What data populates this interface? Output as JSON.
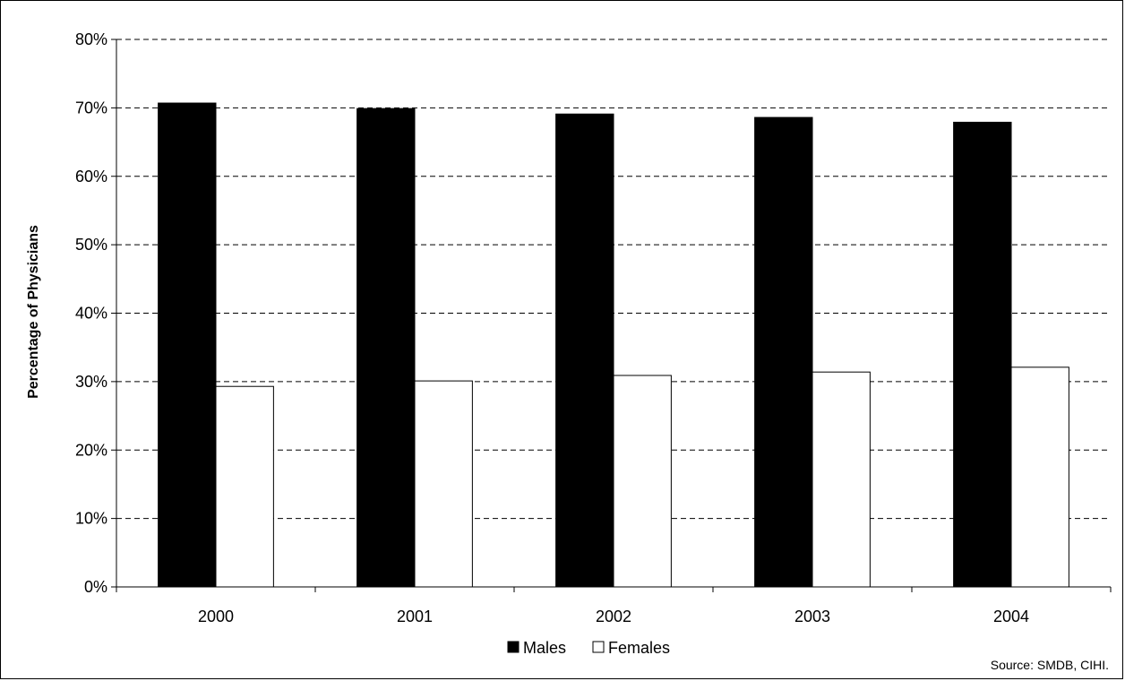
{
  "chart_data": {
    "type": "bar",
    "categories": [
      "2000",
      "2001",
      "2002",
      "2003",
      "2004"
    ],
    "series": [
      {
        "name": "Males",
        "values": [
          70.7,
          69.9,
          69.1,
          68.6,
          67.9
        ],
        "color": "#000000"
      },
      {
        "name": "Females",
        "values": [
          29.3,
          30.1,
          30.9,
          31.4,
          32.1
        ],
        "color": "#ffffff"
      }
    ],
    "title": "",
    "xlabel": "",
    "ylabel": "Percentage of Physicians",
    "ylim": [
      0,
      80
    ],
    "yticks": [
      "0%",
      "10%",
      "20%",
      "30%",
      "40%",
      "50%",
      "60%",
      "70%",
      "80%"
    ],
    "grid": true,
    "legend_position": "bottom-center",
    "source": "Source: SMDB, CIHI."
  }
}
